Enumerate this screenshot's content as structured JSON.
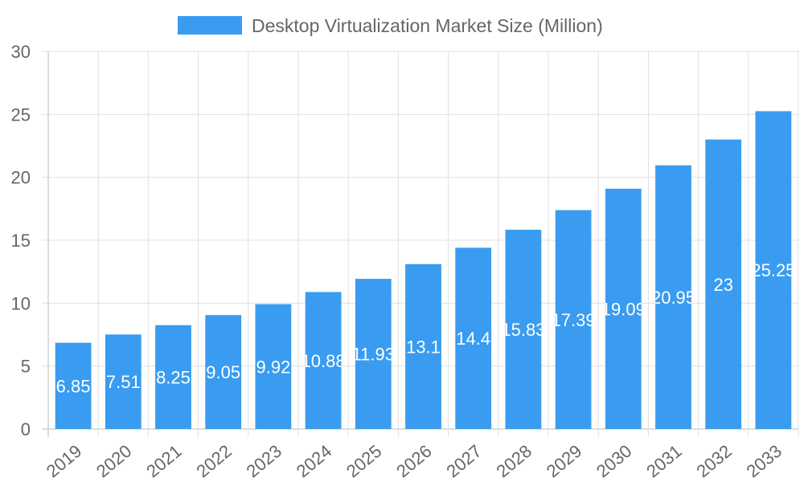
{
  "chart_data": {
    "type": "bar",
    "title": "",
    "xlabel": "",
    "ylabel": "",
    "legend": {
      "position": "top",
      "entries": [
        "Desktop Virtualization Market Size (Million)"
      ]
    },
    "categories": [
      "2019",
      "2020",
      "2021",
      "2022",
      "2023",
      "2024",
      "2025",
      "2026",
      "2027",
      "2028",
      "2029",
      "2030",
      "2031",
      "2032",
      "2033"
    ],
    "series": [
      {
        "name": "Desktop Virtualization Market Size (Million)",
        "values": [
          6.85,
          7.51,
          8.25,
          9.05,
          9.92,
          10.88,
          11.93,
          13.1,
          14.4,
          15.83,
          17.39,
          19.09,
          20.95,
          23,
          25.25
        ],
        "color": "#399CF0"
      }
    ],
    "ylim": [
      0,
      30
    ],
    "yticks": [
      0,
      5,
      10,
      15,
      20,
      25,
      30
    ],
    "grid": true,
    "data_labels": true
  }
}
